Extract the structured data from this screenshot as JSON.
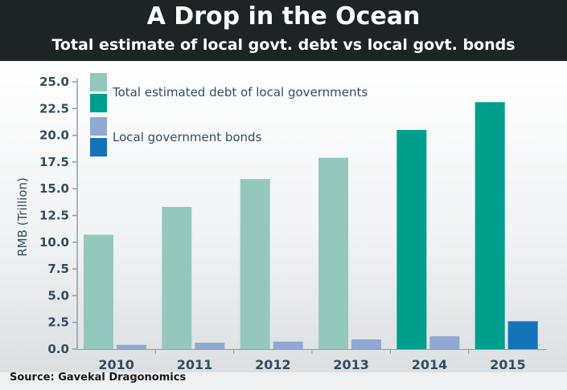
{
  "chart_data": {
    "type": "bar",
    "title": "A Drop in the Ocean",
    "subtitle": "Total estimate of local govt. debt vs local govt. bonds",
    "ylabel": "RMB (Trillion)",
    "xlabel": "",
    "ylim": [
      0,
      25
    ],
    "yticks": [
      "0.0",
      "2.5",
      "5.0",
      "7.5",
      "10.0",
      "12.5",
      "15.0",
      "17.5",
      "20.0",
      "22.5",
      "25.0"
    ],
    "categories": [
      "2010",
      "2011",
      "2012",
      "2013",
      "2014",
      "2015"
    ],
    "grid": false,
    "legend_position": "top-left",
    "series": [
      {
        "name": "Total estimated debt of local governments",
        "values": [
          10.7,
          13.3,
          15.9,
          17.9,
          20.5,
          23.1
        ]
      },
      {
        "name": "Local government bonds",
        "values": [
          0.4,
          0.6,
          0.7,
          0.9,
          1.2,
          2.6
        ]
      }
    ],
    "colors": {
      "debt_estimate": "#94c8bf",
      "debt_actual": "#009e8c",
      "bonds_estimate": "#8fa9d4",
      "bonds_actual": "#1472b8",
      "axis_text": "#2f4e63"
    },
    "bar_styles": {
      "debt": [
        "estimate",
        "estimate",
        "estimate",
        "estimate",
        "actual",
        "actual"
      ],
      "bonds": [
        "estimate",
        "estimate",
        "estimate",
        "estimate",
        "estimate",
        "actual"
      ]
    }
  },
  "source": "Source: Gavekal Dragonomics"
}
